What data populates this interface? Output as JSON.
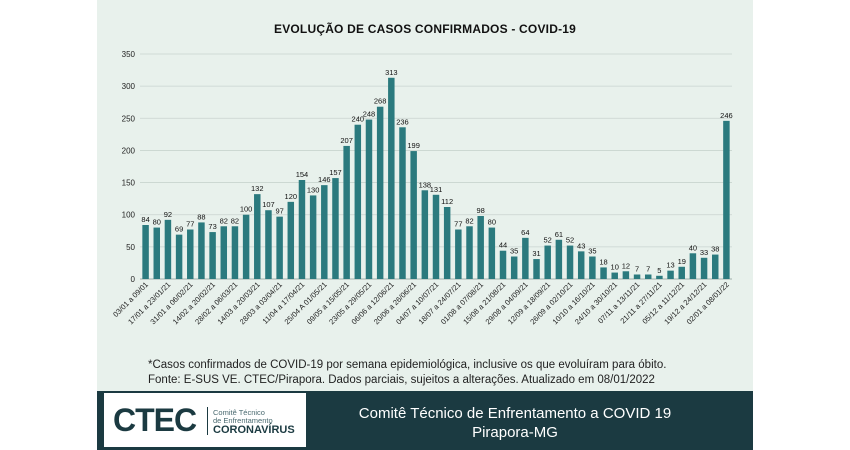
{
  "chart_data": {
    "type": "bar",
    "title": "EVOLUÇÃO DE CASOS CONFIRMADOS -  COVID-19",
    "ylim": [
      0,
      350
    ],
    "yticks": [
      0,
      50,
      100,
      150,
      200,
      250,
      300,
      350
    ],
    "grid": true,
    "bar_color": "#2b7a7e",
    "categories": [
      "03/01 a 09/01",
      "",
      "17/01 a 23/01/21",
      "",
      "31/01 a 06/02/21",
      "",
      "14/02 a 20/02/21",
      "",
      "28/02 a 06/03/21",
      "",
      "14/03 a 20/03/21",
      "",
      "28/03 a 03/04/21",
      "",
      "11/04 a 17/04/21",
      "",
      "25/04 A 01/05/21",
      "",
      "09/05 a 15/05/21",
      "",
      "23/05 a 29/05/21",
      "",
      "06/06 a 12/06/21",
      "",
      "20/06 a 26/06/21",
      "",
      "04/07 a 10/07/21",
      "",
      "18/07 a 24/07/21",
      "",
      "01/08 a 07/08/21",
      "",
      "15/08 a 21/08/21",
      "",
      "29/08 a 04/09/21",
      "",
      "12/09 a 18/09/21",
      "",
      "26/09 a 02/10/21",
      "",
      "10/10 a 16/10/21",
      "",
      "24/10 a 30/10/21",
      "",
      "07/11 a 13/11/21",
      "",
      "21/11 a 27/11/21",
      "",
      "05/12 a 11/12/21",
      "",
      "19/12 a 24/12/21",
      "",
      "02/01 a 08/01/22"
    ],
    "values": [
      84,
      80,
      92,
      69,
      77,
      88,
      73,
      82,
      82,
      100,
      132,
      107,
      97,
      120,
      154,
      130,
      146,
      157,
      207,
      240,
      248,
      268,
      313,
      236,
      199,
      138,
      131,
      112,
      77,
      82,
      98,
      80,
      44,
      35,
      64,
      31,
      52,
      61,
      52,
      43,
      35,
      18,
      10,
      12,
      7,
      7,
      5,
      13,
      19,
      40,
      33,
      38,
      246
    ]
  },
  "notes": {
    "line1": "*Casos confirmados de COVID-19 por semana epidemiológica, inclusive os que evoluíram para óbito.",
    "line2": "Fonte: E-SUS VE. CTEC/Pirapora. Dados parciais, sujeitos a alterações. Atualizado em 08/01/2022"
  },
  "footer": {
    "logo_text": "CTEC",
    "logo_line1": "Comitê Técnico",
    "logo_line2": "de Enfrentamento",
    "logo_line3": "CORONAVÍRUS",
    "title_line1": "Comitê Técnico de Enfrentamento a COVID 19",
    "title_line2": "Pirapora-MG"
  }
}
